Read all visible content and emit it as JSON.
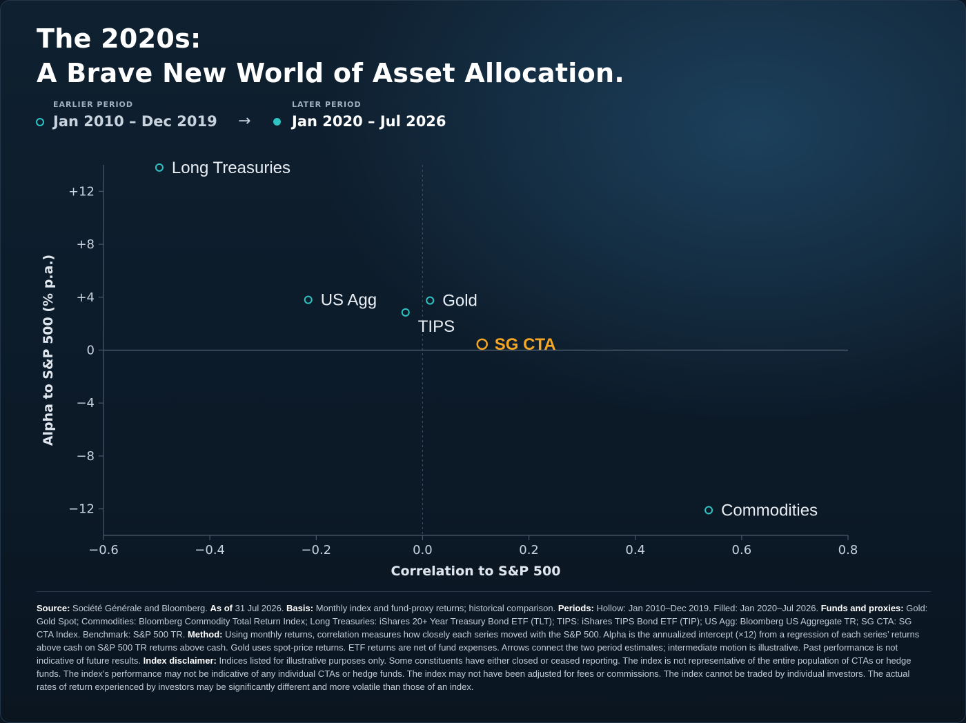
{
  "title": {
    "line1": "The 2020s:",
    "line2": "A Brave New World of Asset Allocation."
  },
  "legend": {
    "earlier_label": "EARLIER PERIOD",
    "earlier_value": "Jan 2010 – Dec 2019",
    "arrow": "→",
    "later_label": "LATER PERIOD",
    "later_value": "Jan 2020 – Jul 2026"
  },
  "colors": {
    "teal": "#2ec4c4",
    "gold": "#f5a623",
    "axis": "#4a5a6a",
    "tick_text": "#c8d3de"
  },
  "chart_data": {
    "type": "scatter",
    "xlabel": "Correlation to S&P 500",
    "ylabel": "Alpha to S&P 500 (% p.a.)",
    "xlim": [
      -0.6,
      0.8
    ],
    "ylim": [
      -14.0,
      14.0
    ],
    "x_ticks": [
      -0.6,
      -0.4,
      -0.2,
      0.0,
      0.2,
      0.4,
      0.6,
      0.8
    ],
    "x_tick_labels": [
      "−0.6",
      "−0.4",
      "−0.2",
      "0.0",
      "0.2",
      "0.4",
      "0.6",
      "0.8"
    ],
    "y_ticks": [
      12,
      8,
      4,
      0,
      -4,
      -8,
      -12
    ],
    "y_tick_labels": [
      "+12",
      "+8",
      "+4",
      "0",
      "−4",
      "−8",
      "−12"
    ],
    "grid": false,
    "points": [
      {
        "label": "Long Treasuries",
        "x": -0.495,
        "y": 13.8,
        "color": "#2ec4c4",
        "highlight": false
      },
      {
        "label": "US Agg",
        "x": -0.215,
        "y": 3.8,
        "color": "#2ec4c4",
        "highlight": false
      },
      {
        "label": "Gold",
        "x": 0.014,
        "y": 3.75,
        "color": "#2ec4c4",
        "highlight": false
      },
      {
        "label": "TIPS",
        "x": -0.032,
        "y": 2.85,
        "color": "#2ec4c4",
        "highlight": false
      },
      {
        "label": "SG CTA",
        "x": 0.112,
        "y": 0.45,
        "color": "#f5a623",
        "highlight": true
      },
      {
        "label": "Commodities",
        "x": 0.538,
        "y": -12.1,
        "color": "#2ec4c4",
        "highlight": false
      }
    ]
  },
  "footnote": [
    {
      "b": "Source:",
      "t": " Société Générale and Bloomberg. "
    },
    {
      "b": "As of",
      "t": " 31 Jul 2026. "
    },
    {
      "b": "Basis:",
      "t": " Monthly index and fund-proxy returns; historical comparison. "
    },
    {
      "b": "Periods:",
      "t": " Hollow: Jan 2010–Dec 2019. Filled: Jan 2020–Jul 2026. "
    },
    {
      "b": "Funds and proxies:",
      "t": " Gold: Gold Spot; Commodities: Bloomberg Commodity Total Return Index; Long Treasuries: iShares 20+ Year Treasury Bond ETF (TLT); TIPS: iShares TIPS Bond ETF (TIP); US Agg: Bloomberg US Aggregate TR; SG CTA: SG CTA Index. Benchmark: S&P 500 TR. "
    },
    {
      "b": "Method:",
      "t": " Using monthly returns, correlation measures how closely each series moved with the S&P 500. Alpha is the annualized intercept (×12) from a regression of each series’ returns above cash on S&P 500 TR returns above cash. Gold uses spot-price returns. ETF returns are net of fund expenses. Arrows connect the two period estimates; intermediate motion is illustrative. Past performance is not indicative of future results. "
    },
    {
      "b": "Index disclaimer:",
      "t": " Indices listed for illustrative purposes only. Some constituents have either closed or ceased reporting. The index is not representative of the entire population of CTAs or hedge funds. The index’s performance may not be indicative of any individual CTAs or hedge funds. The index may not have been adjusted for fees or commissions. The index cannot be traded by individual investors. The actual rates of return experienced by investors may be significantly different and more volatile than those of an index."
    }
  ]
}
